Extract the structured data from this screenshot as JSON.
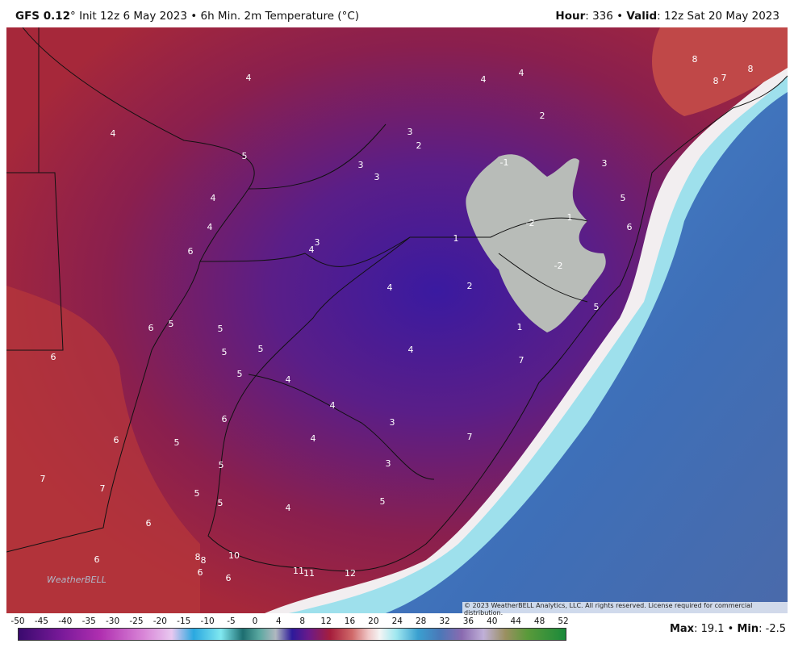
{
  "header": {
    "model": "GFS 0.12",
    "description": "° Init 12z 6 May 2023 • 6h Min. 2m Temperature (°C)",
    "hour_label": "Hour",
    "hour_value": ": 336 • ",
    "valid_label": "Valid",
    "valid_value": ": 12z Sat 20 May 2023"
  },
  "map_labels": [
    4,
    4,
    4,
    8,
    8,
    7,
    8,
    4,
    2,
    3,
    2,
    5,
    3,
    3,
    -1,
    3,
    4,
    5,
    1,
    -2,
    6,
    4,
    1,
    3,
    4,
    6,
    -2,
    2,
    4,
    5,
    6,
    5,
    5,
    1,
    5,
    5,
    4,
    6,
    7,
    5,
    4,
    4,
    6,
    3,
    6,
    5,
    4,
    7,
    5,
    3,
    7,
    7,
    5,
    5,
    5,
    4,
    6,
    6,
    8,
    8,
    10,
    6,
    6,
    11,
    11,
    12
  ],
  "watermark": "WeatherBELL",
  "copyright": "© 2023 WeatherBELL Analytics, LLC. All rights reserved. License required for commercial distribution.",
  "colorbar_ticks": [
    -50,
    -45,
    -40,
    -35,
    -30,
    -25,
    -20,
    -15,
    -10,
    -5,
    0,
    4,
    8,
    12,
    16,
    20,
    24,
    28,
    32,
    36,
    40,
    44,
    48,
    52
  ],
  "footer": {
    "max_label": "Max",
    "max_value": ": 19.1 • ",
    "min_label": "Min",
    "min_value": ": -2.5"
  }
}
